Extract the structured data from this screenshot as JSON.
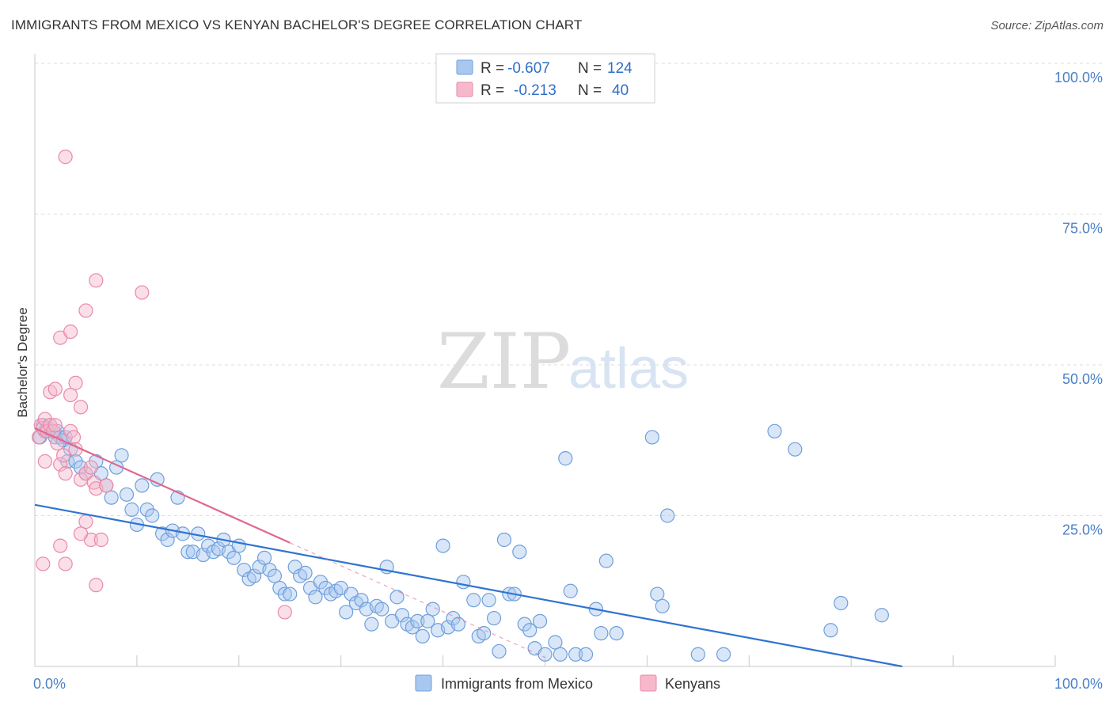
{
  "title": "IMMIGRANTS FROM MEXICO VS KENYAN BACHELOR'S DEGREE CORRELATION CHART",
  "source": "Source: ZipAtlas.com",
  "watermark": {
    "zip": "ZIP",
    "atlas": "atlas"
  },
  "legend": {
    "rows": [
      {
        "r_label": "R =",
        "r_value": "-0.607",
        "n_label": "N =",
        "n_value": "124",
        "color": "#a9c8f0"
      },
      {
        "r_label": "R =",
        "r_value": "-0.213",
        "n_label": "N =",
        "n_value": "40",
        "color": "#f7b8cc"
      }
    ]
  },
  "bottom_legend": [
    {
      "label": "Immigrants from Mexico",
      "color": "#a9c8f0"
    },
    {
      "label": "Kenyans",
      "color": "#f7b8cc"
    }
  ],
  "chart_data": {
    "type": "scatter",
    "title": "IMMIGRANTS FROM MEXICO VS KENYAN BACHELOR'S DEGREE CORRELATION CHART",
    "xlabel": "",
    "ylabel": "Bachelor's Degree",
    "xlim": [
      0,
      100
    ],
    "ylim": [
      0,
      100
    ],
    "x_tick_labels": [
      {
        "value": 0,
        "label": "0.0%"
      },
      {
        "value": 100,
        "label": "100.0%"
      }
    ],
    "y_tick_labels": [
      {
        "value": 25,
        "label": "25.0%"
      },
      {
        "value": 50,
        "label": "50.0%"
      },
      {
        "value": 75,
        "label": "75.0%"
      },
      {
        "value": 100,
        "label": "100.0%"
      }
    ],
    "grid": true,
    "series": [
      {
        "name": "Immigrants from Mexico",
        "color": "#a9c8f0",
        "stroke": "#6f9fdc",
        "trend_color": "#2f74d0",
        "trend": {
          "x": [
            0,
            85
          ],
          "y": [
            26.8,
            0
          ]
        },
        "points": [
          [
            0.5,
            38
          ],
          [
            0.8,
            40
          ],
          [
            1.0,
            39
          ],
          [
            1.2,
            39.5
          ],
          [
            1.5,
            40
          ],
          [
            1.8,
            39
          ],
          [
            2.0,
            38
          ],
          [
            2.2,
            39
          ],
          [
            2.5,
            38
          ],
          [
            2.8,
            37.5
          ],
          [
            3.0,
            38
          ],
          [
            3.5,
            36
          ],
          [
            3.2,
            34
          ],
          [
            4.0,
            34
          ],
          [
            4.5,
            33
          ],
          [
            5.0,
            32
          ],
          [
            6.0,
            34
          ],
          [
            6.5,
            32
          ],
          [
            7.0,
            30
          ],
          [
            7.5,
            28
          ],
          [
            8.0,
            33
          ],
          [
            8.5,
            35
          ],
          [
            9.0,
            28.5
          ],
          [
            9.5,
            26
          ],
          [
            10.0,
            23.5
          ],
          [
            10.5,
            30
          ],
          [
            11.0,
            26
          ],
          [
            11.5,
            25
          ],
          [
            12.0,
            31
          ],
          [
            12.5,
            22
          ],
          [
            13.0,
            21
          ],
          [
            13.5,
            22.5
          ],
          [
            14.0,
            28
          ],
          [
            14.5,
            22
          ],
          [
            15.0,
            19
          ],
          [
            15.5,
            19
          ],
          [
            16.0,
            22
          ],
          [
            16.5,
            18.5
          ],
          [
            17.0,
            20
          ],
          [
            17.5,
            19
          ],
          [
            18.0,
            19.5
          ],
          [
            18.5,
            21
          ],
          [
            19.0,
            19
          ],
          [
            19.5,
            18
          ],
          [
            20.0,
            20
          ],
          [
            20.5,
            16
          ],
          [
            21.0,
            14.5
          ],
          [
            21.5,
            15
          ],
          [
            22.0,
            16.5
          ],
          [
            22.5,
            18
          ],
          [
            23.0,
            16
          ],
          [
            23.5,
            15
          ],
          [
            24.0,
            13
          ],
          [
            24.5,
            12
          ],
          [
            25.0,
            12
          ],
          [
            25.5,
            16.5
          ],
          [
            26.0,
            15
          ],
          [
            26.5,
            15.5
          ],
          [
            27.0,
            13
          ],
          [
            27.5,
            11.5
          ],
          [
            28.0,
            14
          ],
          [
            28.5,
            13
          ],
          [
            29.0,
            12
          ],
          [
            29.5,
            12.5
          ],
          [
            30.0,
            13
          ],
          [
            30.5,
            9
          ],
          [
            31.0,
            12
          ],
          [
            31.5,
            10.5
          ],
          [
            32.0,
            11
          ],
          [
            32.5,
            9.5
          ],
          [
            33.0,
            7
          ],
          [
            33.5,
            10
          ],
          [
            34.0,
            9.5
          ],
          [
            34.5,
            16.5
          ],
          [
            35.0,
            7.5
          ],
          [
            35.5,
            11.5
          ],
          [
            36.0,
            8.5
          ],
          [
            36.5,
            7
          ],
          [
            37.0,
            6.5
          ],
          [
            37.5,
            7.5
          ],
          [
            38.0,
            5
          ],
          [
            38.5,
            7.5
          ],
          [
            39.0,
            9.5
          ],
          [
            39.5,
            6
          ],
          [
            40.0,
            20
          ],
          [
            40.5,
            6.5
          ],
          [
            41.0,
            8
          ],
          [
            41.5,
            7
          ],
          [
            42.0,
            14
          ],
          [
            43.0,
            11
          ],
          [
            43.5,
            5
          ],
          [
            44.0,
            5.5
          ],
          [
            44.5,
            11
          ],
          [
            45.0,
            8
          ],
          [
            45.5,
            2.5
          ],
          [
            46.0,
            21
          ],
          [
            46.5,
            12
          ],
          [
            47.0,
            12
          ],
          [
            47.5,
            19
          ],
          [
            48.0,
            7
          ],
          [
            48.5,
            6
          ],
          [
            49.0,
            3
          ],
          [
            49.5,
            7.5
          ],
          [
            50.0,
            2
          ],
          [
            51.0,
            4
          ],
          [
            51.5,
            2
          ],
          [
            52.0,
            34.5
          ],
          [
            52.5,
            12.5
          ],
          [
            53.0,
            2
          ],
          [
            54.0,
            2
          ],
          [
            55.0,
            9.5
          ],
          [
            55.5,
            5.5
          ],
          [
            56.0,
            17.5
          ],
          [
            57.0,
            5.5
          ],
          [
            60.5,
            38
          ],
          [
            61.0,
            12
          ],
          [
            61.5,
            10
          ],
          [
            62.0,
            25
          ],
          [
            65.0,
            2
          ],
          [
            67.5,
            2
          ],
          [
            72.5,
            39
          ],
          [
            74.5,
            36
          ],
          [
            78.0,
            6
          ],
          [
            79.0,
            10.5
          ],
          [
            83.0,
            8.5
          ]
        ]
      },
      {
        "name": "Kenyans",
        "color": "#f7b8cc",
        "stroke": "#e88aa8",
        "trend_color": "#e06890",
        "trend": {
          "x": [
            0,
            25
          ],
          "y": [
            39.5,
            20.5
          ]
        },
        "trend_dashed": {
          "x": [
            25,
            50
          ],
          "y": [
            20.5,
            1.5
          ]
        },
        "points": [
          [
            0.4,
            38
          ],
          [
            0.6,
            40
          ],
          [
            0.8,
            39.5
          ],
          [
            1.0,
            41
          ],
          [
            1.2,
            39
          ],
          [
            1.5,
            40
          ],
          [
            1.8,
            39
          ],
          [
            2.0,
            40
          ],
          [
            2.2,
            37
          ],
          [
            2.5,
            33.5
          ],
          [
            2.8,
            35
          ],
          [
            3.0,
            32
          ],
          [
            3.5,
            39
          ],
          [
            3.8,
            38
          ],
          [
            4.0,
            36
          ],
          [
            4.5,
            31
          ],
          [
            5.0,
            32
          ],
          [
            5.5,
            33
          ],
          [
            5.8,
            30.5
          ],
          [
            6.0,
            29.5
          ],
          [
            1.0,
            34
          ],
          [
            1.5,
            45.5
          ],
          [
            2.0,
            46
          ],
          [
            2.5,
            20
          ],
          [
            3.0,
            17
          ],
          [
            3.5,
            45
          ],
          [
            4.0,
            47
          ],
          [
            4.5,
            43
          ],
          [
            5.0,
            24
          ],
          [
            5.5,
            21
          ],
          [
            6.0,
            13.5
          ],
          [
            6.5,
            21
          ],
          [
            7.0,
            30
          ],
          [
            2.5,
            54.5
          ],
          [
            3.5,
            55.5
          ],
          [
            5.0,
            59
          ],
          [
            6.0,
            64
          ],
          [
            10.5,
            62
          ],
          [
            3.0,
            84.5
          ],
          [
            24.5,
            9
          ],
          [
            0.8,
            17
          ],
          [
            4.5,
            22
          ]
        ]
      }
    ]
  }
}
